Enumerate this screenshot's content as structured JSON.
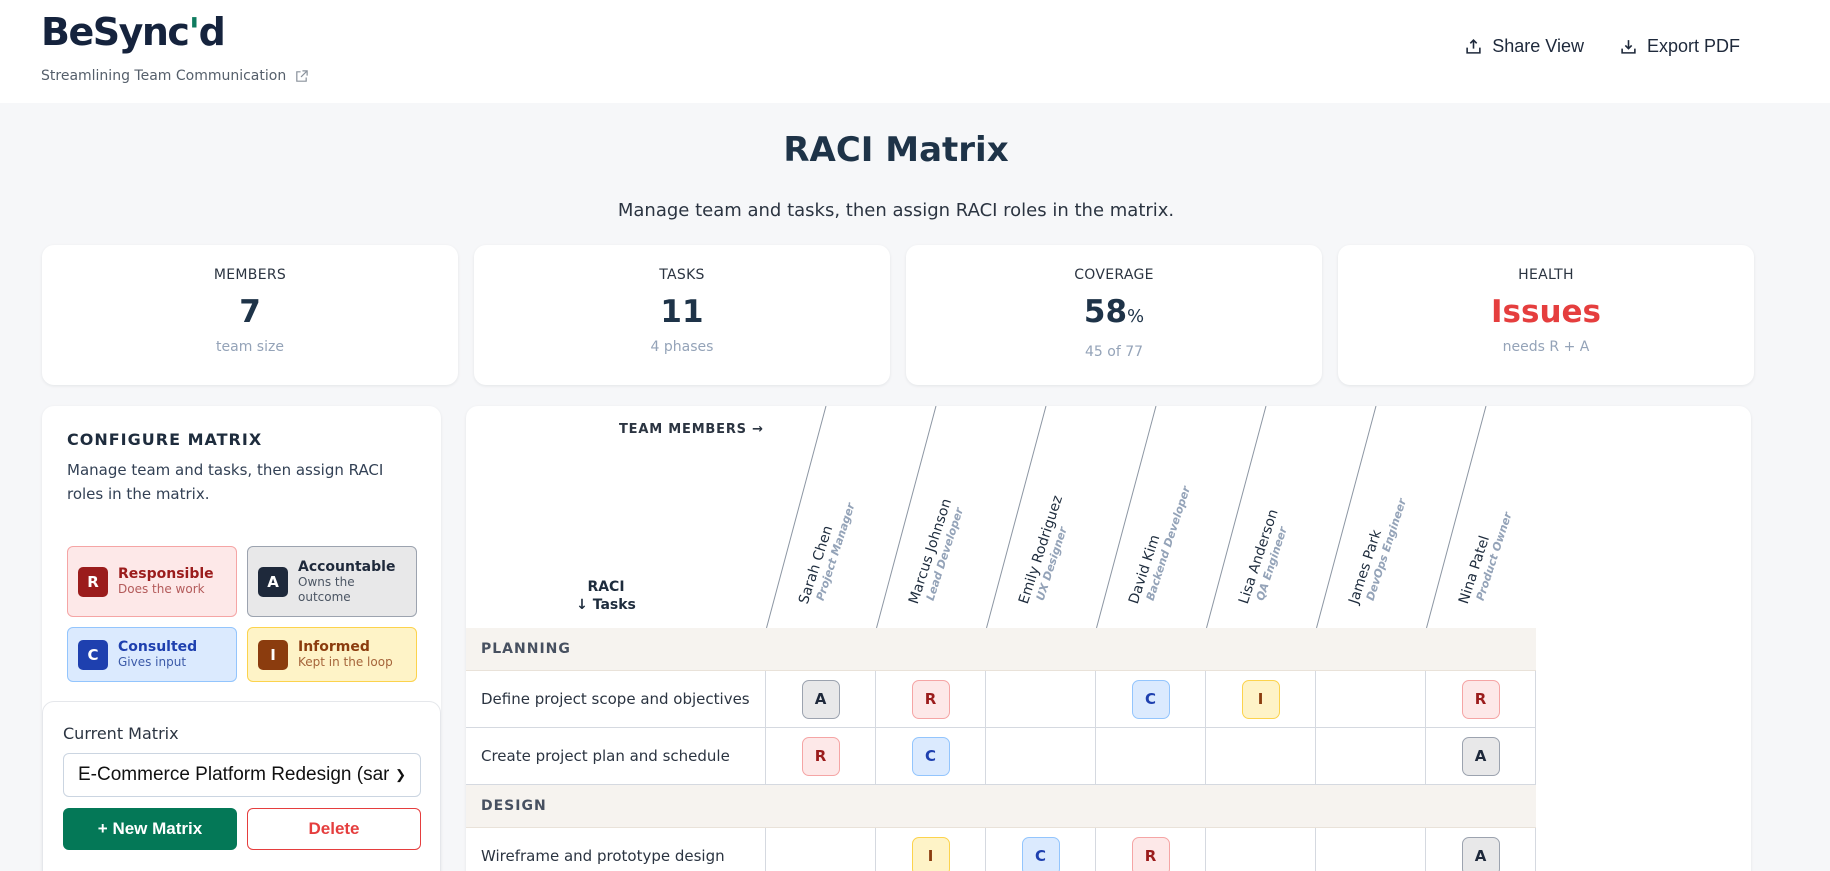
{
  "header": {
    "logo_main": "BeSync",
    "logo_apos": "'",
    "logo_end": "d",
    "tagline": "Streamlining Team Communication",
    "actions": [
      {
        "label": "Share View",
        "icon": "share-icon"
      },
      {
        "label": "Export PDF",
        "icon": "download-icon"
      }
    ]
  },
  "page": {
    "title": "RACI Matrix",
    "subtitle": "Manage team and tasks, then assign RACI roles in the matrix."
  },
  "stats": [
    {
      "label": "MEMBERS",
      "value": "7",
      "unit": "",
      "sub": "team size"
    },
    {
      "label": "TASKS",
      "value": "11",
      "unit": "",
      "sub": "4 phases"
    },
    {
      "label": "COVERAGE",
      "value": "58",
      "unit": "%",
      "sub": "45 of 77"
    },
    {
      "label": "HEALTH",
      "value": "Issues",
      "unit": "",
      "sub": "needs R + A",
      "color": "#e53e3e"
    }
  ],
  "config": {
    "title": "CONFIGURE MATRIX",
    "description": "Manage team and tasks, then assign RACI roles in the matrix.",
    "legend": [
      {
        "key": "R",
        "title": "Responsible",
        "desc": "Does the work"
      },
      {
        "key": "A",
        "title": "Accountable",
        "desc": "Owns the outcome"
      },
      {
        "key": "C",
        "title": "Consulted",
        "desc": "Gives input"
      },
      {
        "key": "I",
        "title": "Informed",
        "desc": "Kept in the loop"
      }
    ],
    "current_matrix_label": "Current Matrix",
    "current_matrix_value": "E-Commerce Platform Redesign (sar",
    "new_matrix_label": "+ New Matrix",
    "delete_label": "Delete"
  },
  "matrix": {
    "team_members_label": "TEAM MEMBERS →",
    "corner_line1": "RACI",
    "corner_line2": "↓ Tasks",
    "members": [
      {
        "name": "Sarah Chen",
        "role": "Project Manager"
      },
      {
        "name": "Marcus Johnson",
        "role": "Lead Developer"
      },
      {
        "name": "Emily Rodriguez",
        "role": "UX Designer"
      },
      {
        "name": "David Kim",
        "role": "Backend Developer"
      },
      {
        "name": "Lisa Anderson",
        "role": "QA Engineer"
      },
      {
        "name": "James Park",
        "role": "DevOps Engineer"
      },
      {
        "name": "Nina Patel",
        "role": "Product Owner"
      }
    ],
    "phases": [
      {
        "name": "PLANNING",
        "tasks": [
          {
            "name": "Define project scope and objectives",
            "roles": [
              "A",
              "R",
              "",
              "C",
              "I",
              "",
              "R"
            ]
          },
          {
            "name": "Create project plan and schedule",
            "roles": [
              "R",
              "C",
              "",
              "",
              "",
              "",
              "A"
            ]
          }
        ]
      },
      {
        "name": "DESIGN",
        "tasks": [
          {
            "name": "Wireframe and prototype design",
            "roles": [
              "",
              "I",
              "C",
              "R",
              "",
              "",
              "A"
            ]
          }
        ]
      }
    ]
  }
}
